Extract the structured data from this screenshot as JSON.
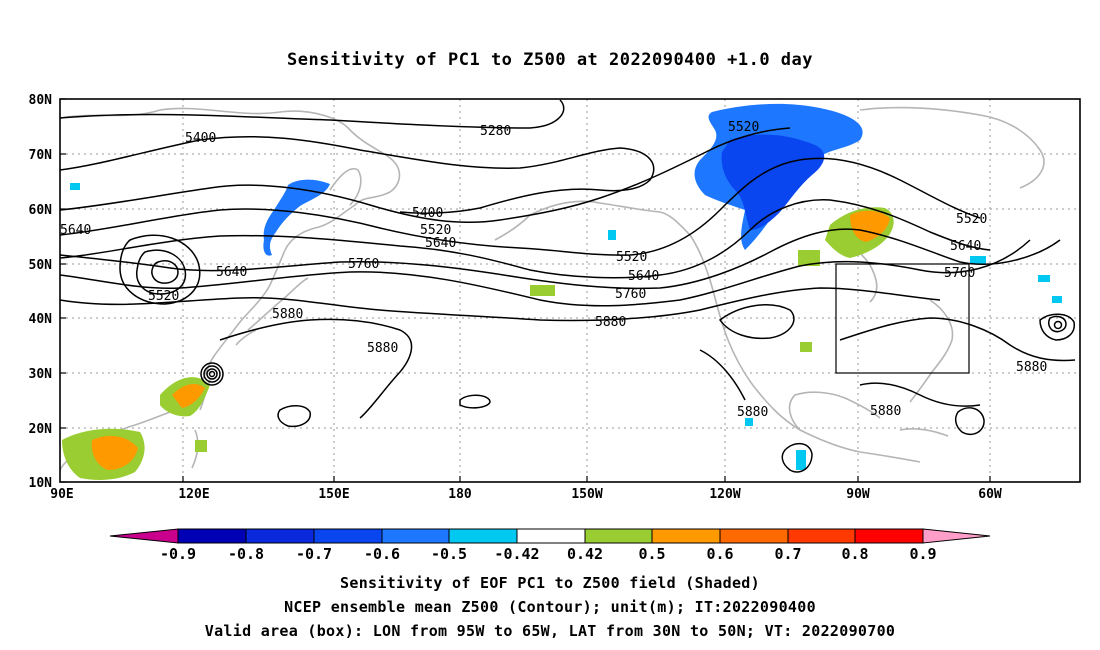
{
  "title": "Sensitivity of PC1 to Z500 at 2022090400 +1.0 day",
  "map": {
    "lat_labels": [
      "80N",
      "70N",
      "60N",
      "50N",
      "40N",
      "30N",
      "20N",
      "10N"
    ],
    "lon_labels": [
      "90E",
      "120E",
      "150E",
      "180",
      "150W",
      "120W",
      "90W",
      "60W"
    ],
    "contour_labels": [
      "5280",
      "5400",
      "5400",
      "5520",
      "5520",
      "5520",
      "5520",
      "5520",
      "5640",
      "5640",
      "5640",
      "5640",
      "5640",
      "5760",
      "5760",
      "5760",
      "5880",
      "5880",
      "5880",
      "5880",
      "5880"
    ],
    "box": {
      "lon_from": "95W",
      "lon_to": "65W",
      "lat_from": "30N",
      "lat_to": "50N"
    },
    "colors": {
      "land": "#b5b5b5",
      "contour": "#000000",
      "neg_strong": "#0a3cf0",
      "neg_mid": "#1e82ff",
      "neg_weak": "#00c8f0",
      "pos_weak": "#9acd32",
      "pos_mid": "#ff9900",
      "pos_strong": "#ff6a00"
    }
  },
  "colorbar": {
    "labels": [
      "-0.9",
      "-0.8",
      "-0.7",
      "-0.6",
      "-0.5",
      "-0.42",
      "0.42",
      "0.5",
      "0.6",
      "0.7",
      "0.8",
      "0.9"
    ],
    "colors": [
      "#c8008c",
      "#0000b4",
      "#0a28dc",
      "#0a46f0",
      "#1e78ff",
      "#00c8f0",
      "#ffffff",
      "#9acd32",
      "#ff9900",
      "#ff6a00",
      "#ff3a00",
      "#ff0000",
      "#ff9ec8"
    ]
  },
  "footer": {
    "line1": "Sensitivity of EOF PC1 to Z500 field (Shaded)",
    "line2": "NCEP ensemble mean Z500 (Contour); unit(m); IT:2022090400",
    "line3": "Valid area (box): LON from 95W to 65W, LAT from 30N to 50N; VT: 2022090700"
  }
}
